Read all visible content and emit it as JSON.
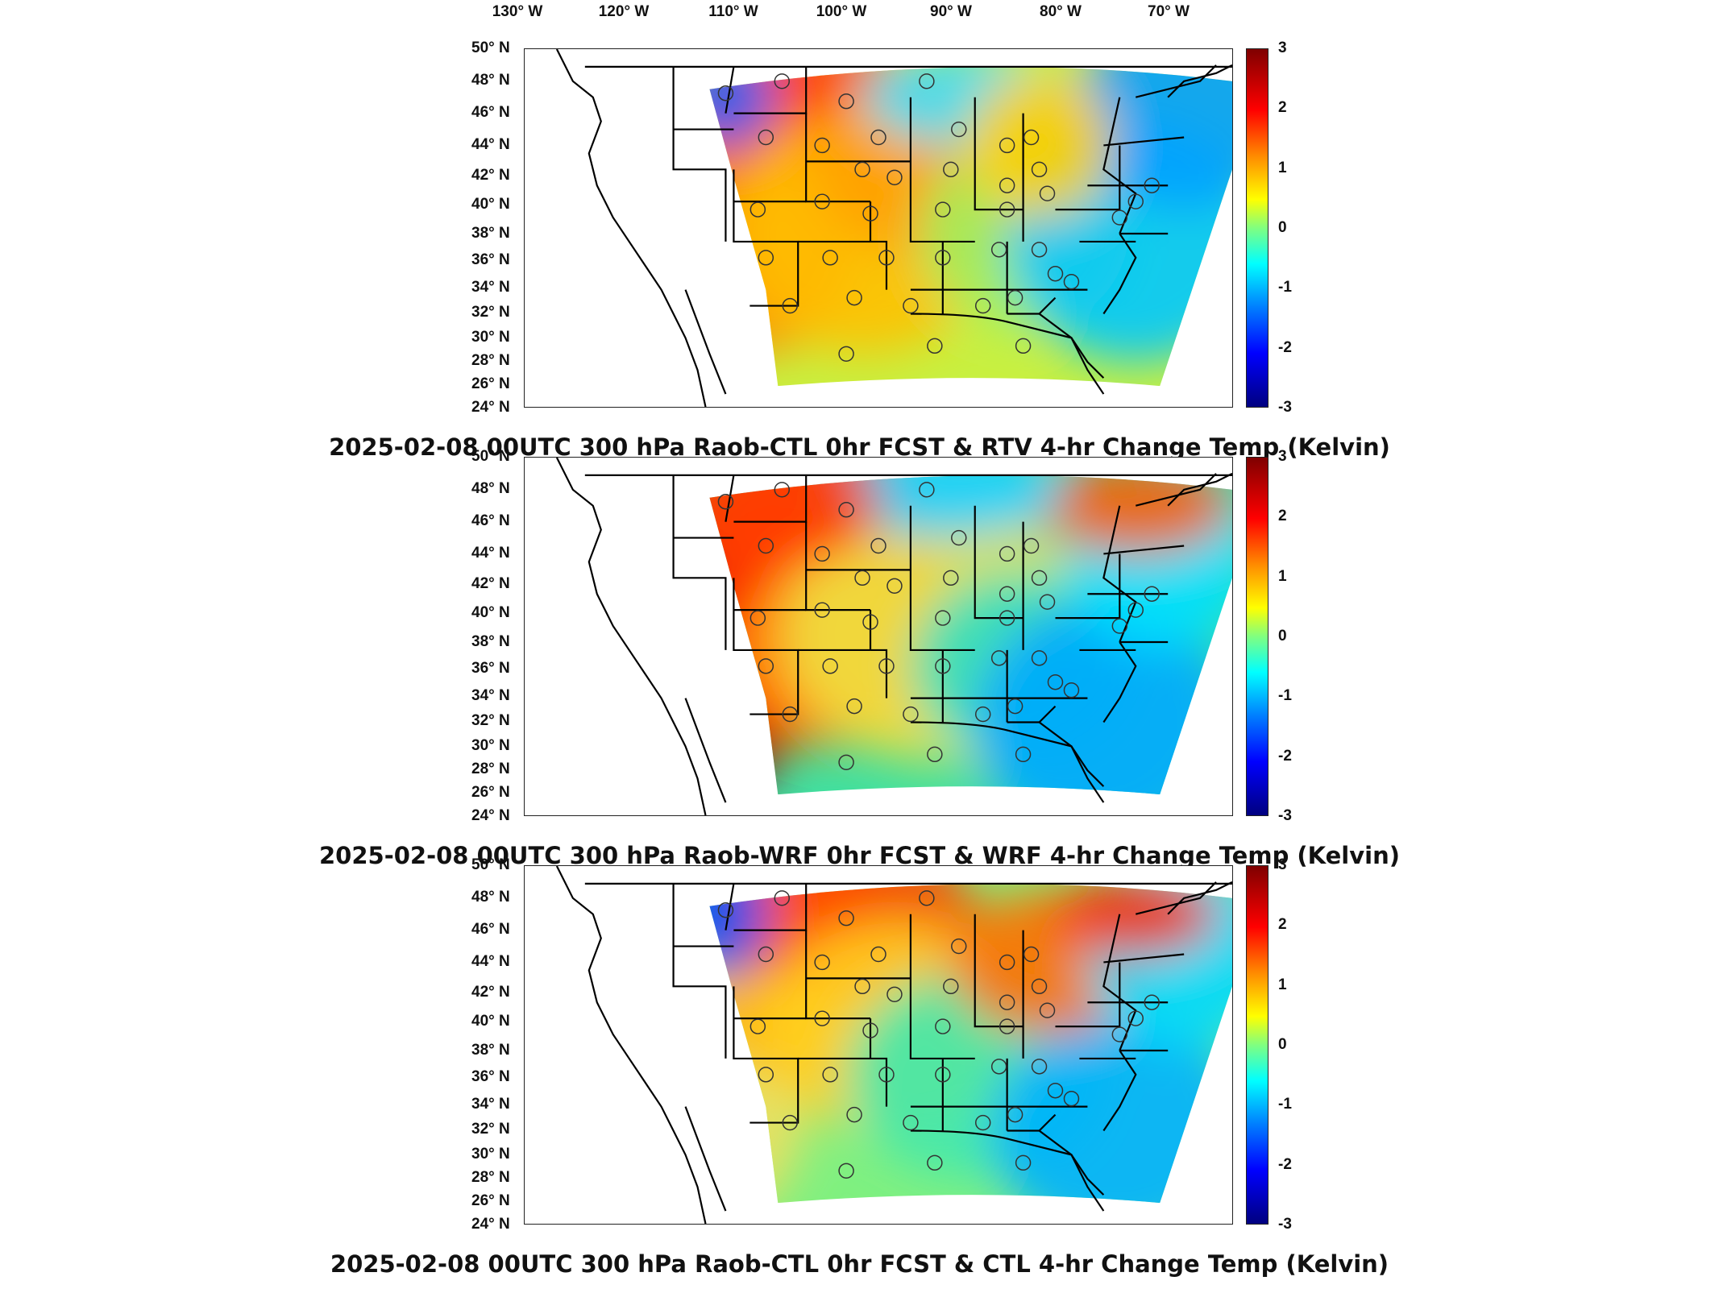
{
  "longitude_labels": [
    "130° W",
    "120° W",
    "110° W",
    "100° W",
    "90° W",
    "80° W",
    "70° W"
  ],
  "latitude_labels": [
    "50° N",
    "48° N",
    "46° N",
    "44° N",
    "42° N",
    "40° N",
    "38° N",
    "36° N",
    "34° N",
    "32° N",
    "30° N",
    "28° N",
    "26° N",
    "24° N"
  ],
  "colorbar": {
    "ticks": [
      "3",
      "2",
      "1",
      "0",
      "-1",
      "-2",
      "-3"
    ],
    "min": -3,
    "max": 3,
    "units": "Kelvin"
  },
  "panels": [
    {
      "title": "2025-02-08 00UTC 300 hPa Raob-CTL 0hr FCST & RTV 4-hr Change Temp (Kelvin)",
      "field_style": "rtv"
    },
    {
      "title": "2025-02-08 00UTC 300 hPa Raob-WRF 0hr FCST & WRF 4-hr Change Temp (Kelvin)",
      "field_style": "wrf"
    },
    {
      "title": "2025-02-08 00UTC 300 hPa Raob-CTL 0hr FCST & CTL 4-hr Change Temp (Kelvin)",
      "field_style": "ctl"
    }
  ]
}
